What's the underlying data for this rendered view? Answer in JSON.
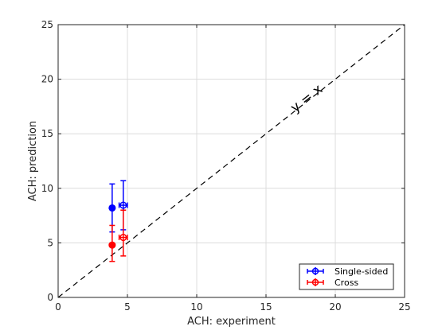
{
  "chart_data": {
    "type": "scatter",
    "xlabel": "ACH: experiment",
    "ylabel": "ACH: prediction",
    "xlim": [
      0,
      25
    ],
    "ylim": [
      0,
      25
    ],
    "xticks": [
      0,
      5,
      10,
      15,
      20,
      25
    ],
    "yticks": [
      0,
      5,
      10,
      15,
      20,
      25
    ],
    "grid": true,
    "legend_position": "bottom-right",
    "reference_line": {
      "label": "y = x",
      "style": "dashed",
      "color": "#000000"
    },
    "series": [
      {
        "name": "Single-sided",
        "color": "#0000ff",
        "points": [
          {
            "x": 3.9,
            "y": 8.2,
            "y_low": 6.0,
            "y_high": 10.4,
            "filled": true
          },
          {
            "x": 4.7,
            "y": 8.45,
            "y_low": 6.2,
            "y_high": 10.7,
            "x_low": 4.4,
            "x_high": 5.0,
            "filled": false
          }
        ]
      },
      {
        "name": "Cross",
        "color": "#ff0000",
        "points": [
          {
            "x": 3.9,
            "y": 4.8,
            "y_low": 3.3,
            "y_high": 6.6,
            "filled": true
          },
          {
            "x": 4.7,
            "y": 5.5,
            "y_low": 3.8,
            "y_high": 8.0,
            "x_low": 4.4,
            "x_high": 5.0,
            "filled": false
          }
        ]
      }
    ]
  }
}
